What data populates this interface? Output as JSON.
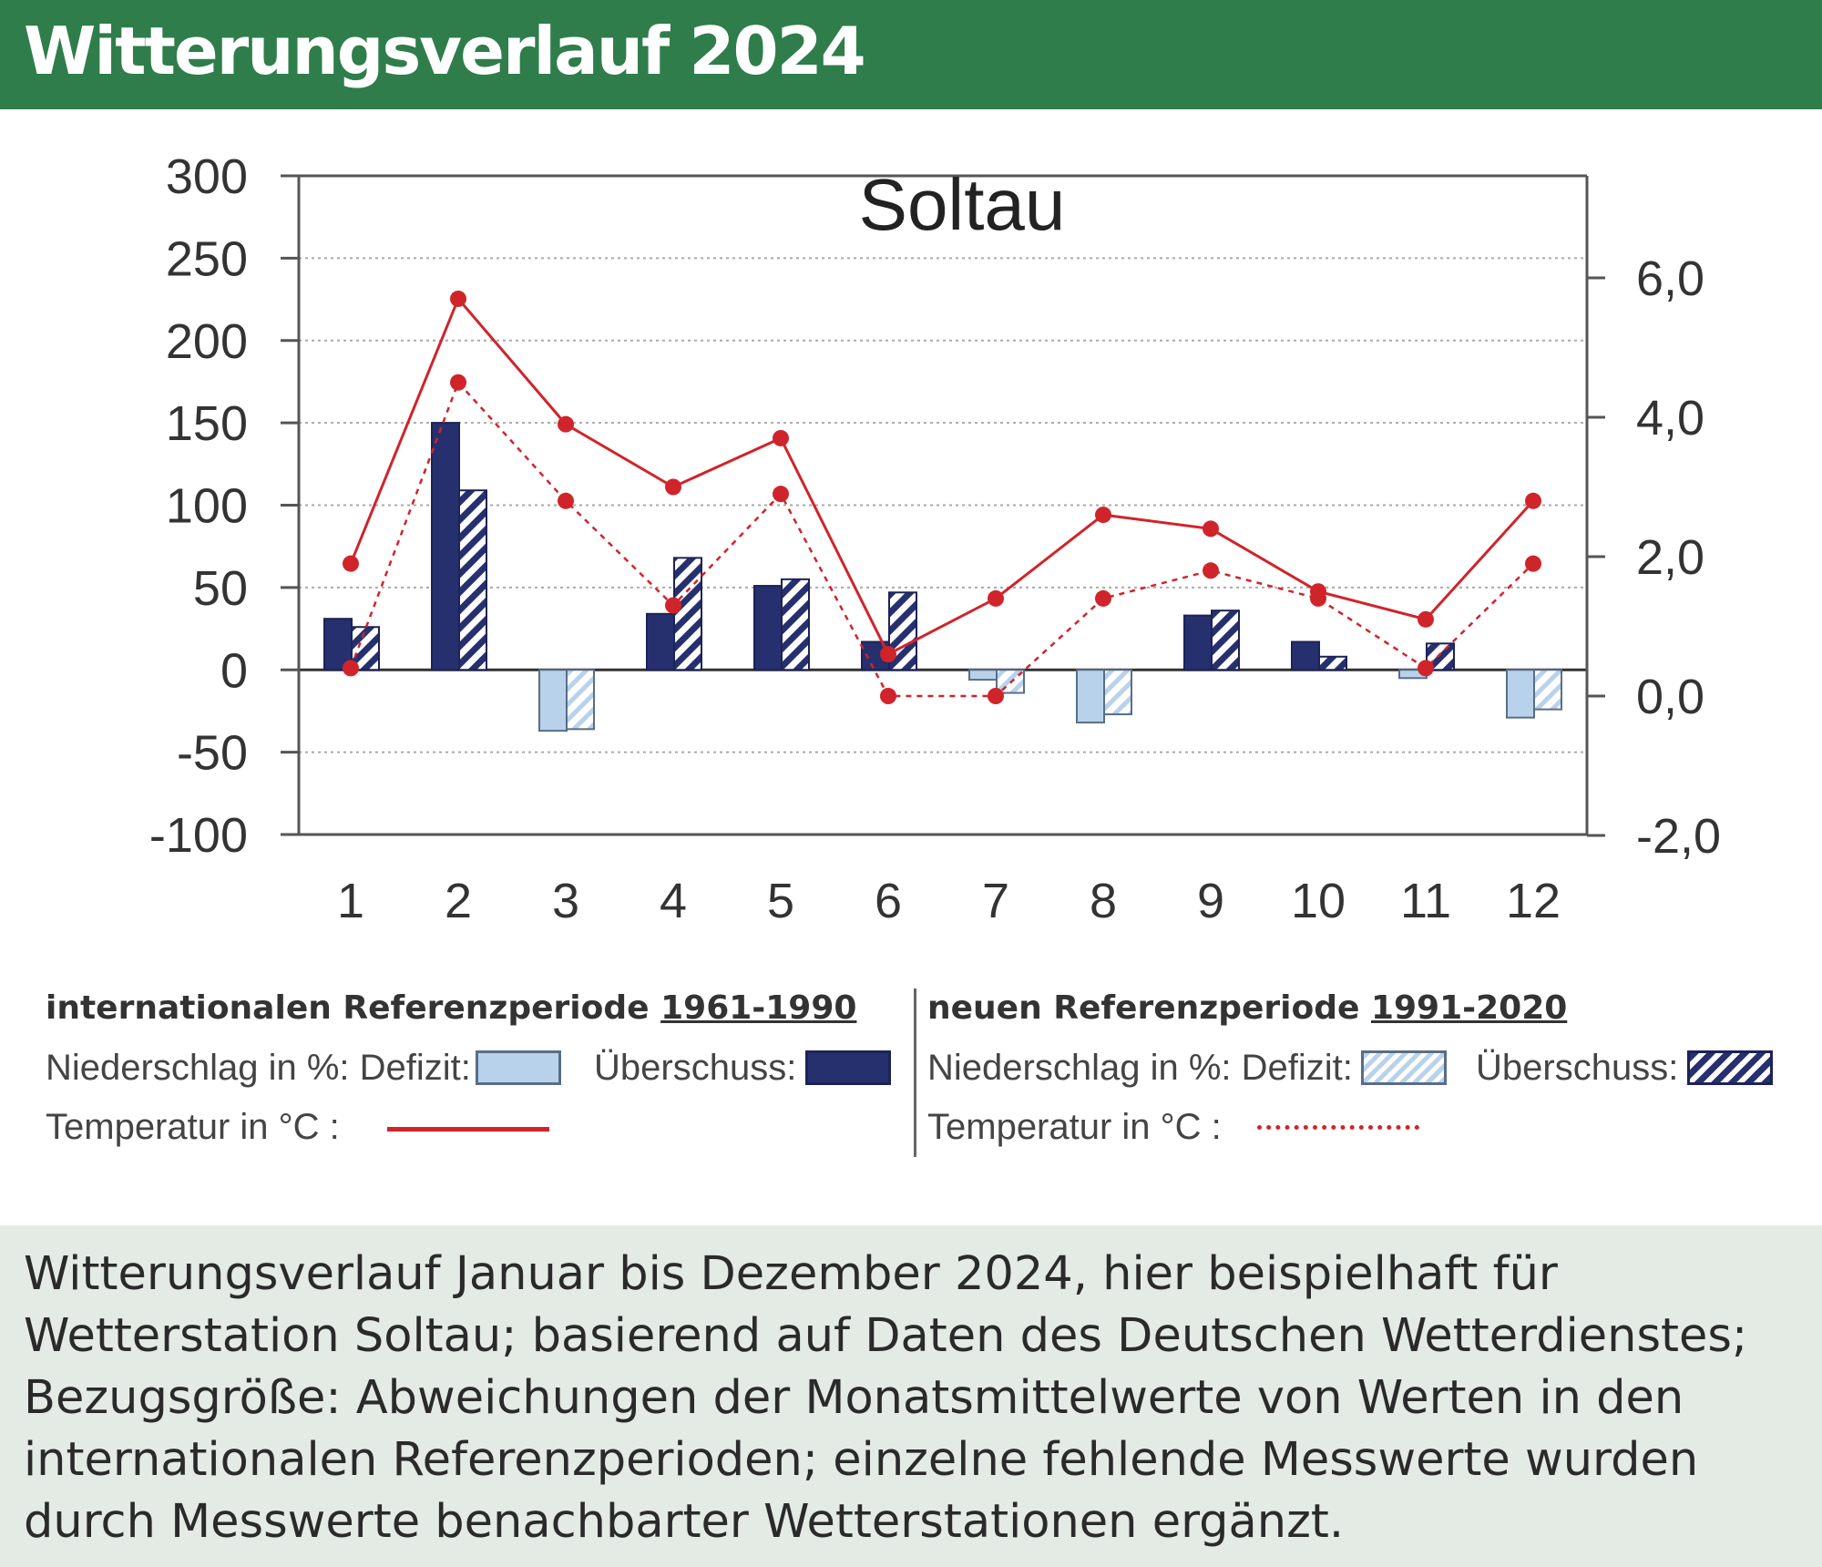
{
  "header": {
    "title": "Witterungsverlauf 2024"
  },
  "chart_data": {
    "type": "bar",
    "title": "Soltau",
    "categories": [
      "1",
      "2",
      "3",
      "4",
      "5",
      "6",
      "7",
      "8",
      "9",
      "10",
      "11",
      "12"
    ],
    "y_left": {
      "label": "",
      "range": [
        -100,
        300
      ],
      "ticks": [
        "300",
        "250",
        "200",
        "150",
        "100",
        "50",
        "0",
        "-50",
        "-100"
      ]
    },
    "y_right": {
      "label": "",
      "range": [
        -2.0,
        7.5
      ],
      "ticks": [
        "6,0",
        "4,0",
        "2,0",
        "0,0",
        "-2,0"
      ]
    },
    "grid": "dotted horizontal",
    "series": [
      {
        "name": "internationalen Referenzperiode 1961-1990 – Niederschlag in %",
        "kind": "bar",
        "axis": "left",
        "values": [
          31,
          150,
          -37,
          34,
          51,
          17,
          -6,
          -32,
          33,
          17,
          -5,
          -29
        ]
      },
      {
        "name": "neuen Referenzperiode 1991-2020 – Niederschlag in %",
        "kind": "bar",
        "axis": "left",
        "values": [
          26,
          109,
          -36,
          68,
          55,
          47,
          -14,
          -27,
          36,
          8,
          16,
          -24
        ]
      },
      {
        "name": "internationalen Referenzperiode 1961-1990 – Temperatur in °C",
        "kind": "line",
        "axis": "right",
        "values": [
          1.9,
          5.7,
          3.9,
          3.0,
          3.7,
          0.6,
          1.4,
          2.6,
          2.4,
          1.5,
          1.1,
          2.8
        ]
      },
      {
        "name": "neuen Referenzperiode 1991-2020 – Temperatur in °C",
        "kind": "line",
        "axis": "right",
        "values": [
          0.4,
          4.5,
          2.8,
          1.3,
          2.9,
          0.0,
          0.0,
          1.4,
          1.8,
          1.4,
          0.4,
          1.9
        ]
      }
    ],
    "colors": {
      "ueberschuss": "#27306f",
      "defizit": "#b9d2ec",
      "temperature": "#d0242b",
      "grid": "#aaaaaa"
    }
  },
  "legend": {
    "left": {
      "heading_prefix": "internationalen Referenzperiode ",
      "heading_period": "1961-1990",
      "precip_label": "Niederschlag in %: Defizit:",
      "surplus_label": "Überschuss:",
      "temp_label": "Temperatur in °C :"
    },
    "right": {
      "heading_prefix": "neuen Referenzperiode ",
      "heading_period": "1991-2020",
      "precip_label": "Niederschlag in %: Defizit:",
      "surplus_label": "Überschuss:",
      "temp_label": "Temperatur in °C :"
    }
  },
  "caption": "Witterungsverlauf Januar bis Dezember 2024, hier beispielhaft für Wetterstation Soltau; basierend auf Daten des Deutschen Wetterdienstes; Bezugsgröße: Abweichungen der Monatsmittelwerte von Werten in den internationalen Referenzperioden; einzelne fehlende Messwerte wurden durch Messwerte benachbarter Wetterstationen ergänzt."
}
